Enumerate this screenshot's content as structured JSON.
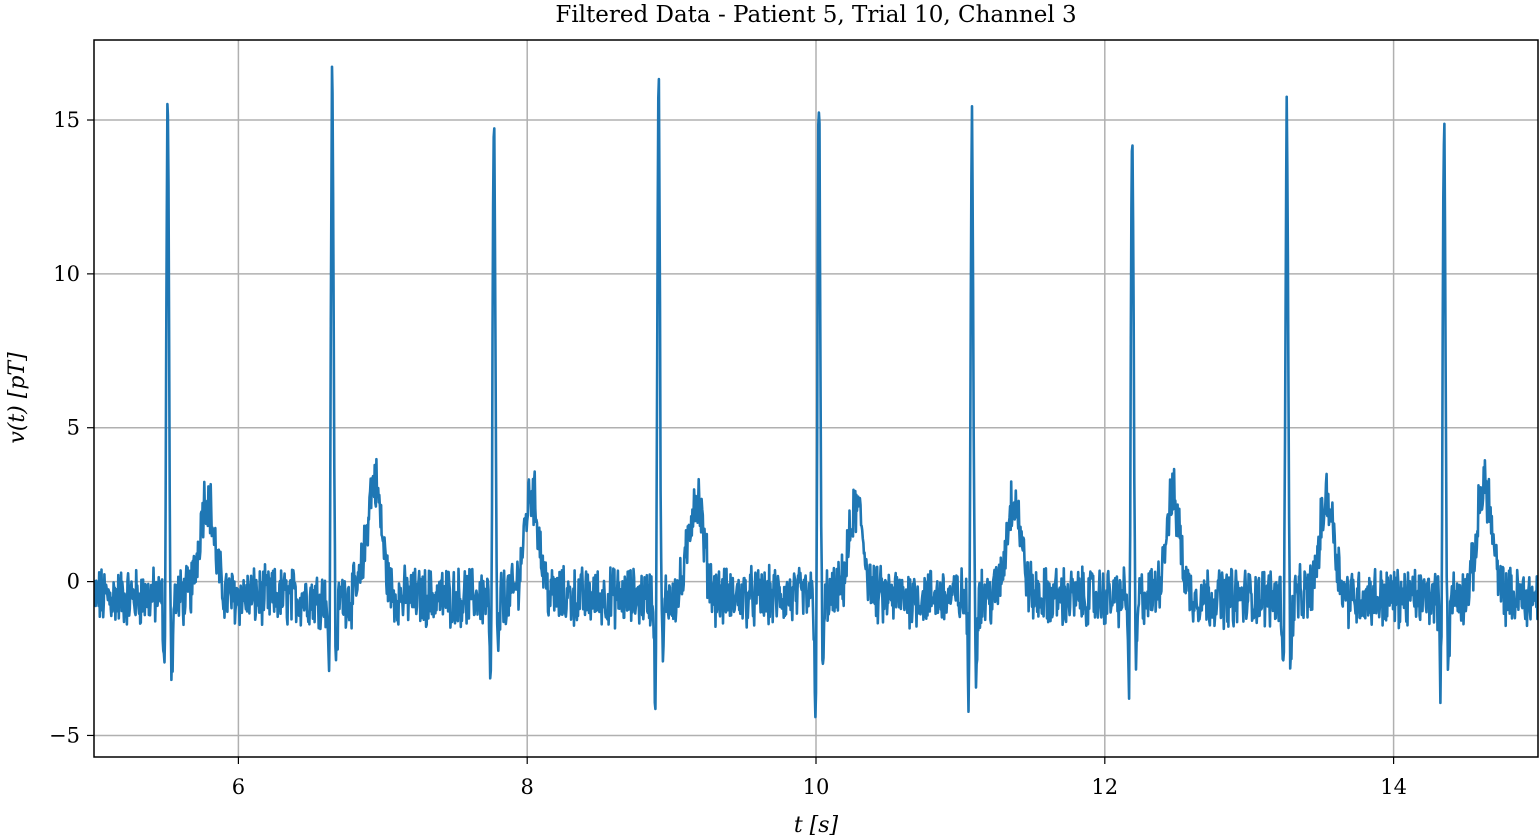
{
  "chart_data": {
    "type": "line",
    "title": "Filtered Data - Patient 5, Trial 10, Channel 3",
    "xlabel": "t [s]",
    "ylabel": "v(t) [pT]",
    "xlim": [
      5,
      15
    ],
    "ylim": [
      -5.7,
      17.6
    ],
    "xticks": [
      6,
      8,
      10,
      12,
      14
    ],
    "yticks": [
      -5,
      0,
      5,
      10,
      15
    ],
    "ytick_labels": [
      "−5",
      "0",
      "5",
      "10",
      "15"
    ],
    "grid": true,
    "legend": "none",
    "line_color": "#1f77b4",
    "series": [
      {
        "beats": [
          {
            "r_time": 5.51,
            "r_peak": 15.4,
            "s_trough": -3.7,
            "t_time": 5.78,
            "t_peak": 3.6
          },
          {
            "r_time": 6.65,
            "r_peak": 16.5,
            "s_trough": -3.7,
            "t_time": 6.94,
            "t_peak": 4.1
          },
          {
            "r_time": 7.77,
            "r_peak": 15.1,
            "s_trough": -4.1,
            "t_time": 8.03,
            "t_peak": 3.7
          },
          {
            "r_time": 8.91,
            "r_peak": 16.0,
            "s_trough": -4.3,
            "t_time": 9.17,
            "t_peak": 3.6
          },
          {
            "r_time": 10.02,
            "r_peak": 15.7,
            "s_trough": -4.6,
            "t_time": 10.28,
            "t_peak": 3.2
          },
          {
            "r_time": 11.08,
            "r_peak": 15.3,
            "s_trough": -4.6,
            "t_time": 11.37,
            "t_peak": 3.5
          },
          {
            "r_time": 12.19,
            "r_peak": 14.8,
            "s_trough": -3.8,
            "t_time": 12.47,
            "t_peak": 3.5
          },
          {
            "r_time": 13.26,
            "r_peak": 15.3,
            "s_trough": -3.3,
            "t_time": 13.54,
            "t_peak": 3.5
          },
          {
            "r_time": 14.35,
            "r_peak": 15.4,
            "s_trough": -3.9,
            "t_time": 14.63,
            "t_peak": 4.0
          }
        ],
        "baseline": -0.5
      }
    ]
  }
}
